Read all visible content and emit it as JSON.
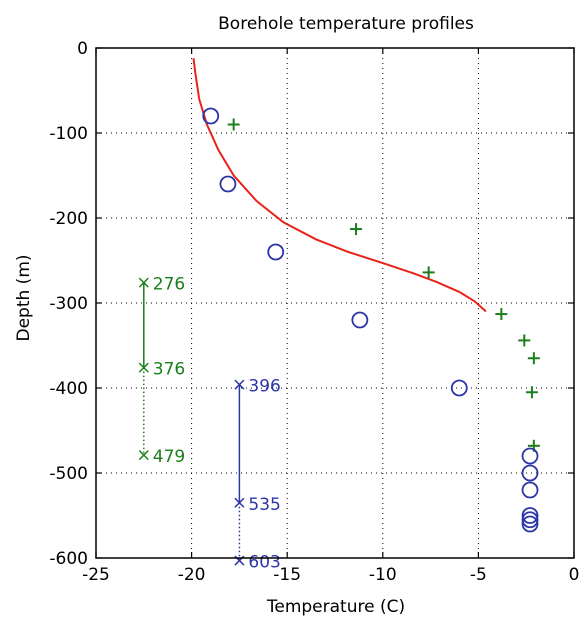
{
  "chart_data": {
    "type": "scatter",
    "title": "Borehole temperature profiles",
    "xlabel": "Temperature (C)",
    "ylabel": "Depth (m)",
    "xlim": [
      -25,
      0
    ],
    "ylim": [
      -600,
      0
    ],
    "grid": true,
    "x_ticks": [
      -25,
      -20,
      -15,
      -10,
      -5,
      0
    ],
    "x_tick_labels": [
      "-25",
      "-20",
      "-15",
      "-10",
      "-5",
      "0"
    ],
    "y_ticks": [
      0,
      -100,
      -200,
      -300,
      -400,
      -500,
      -600
    ],
    "y_tick_labels": [
      "0",
      "-100",
      "-200",
      "-300",
      "-400",
      "-500",
      "-600"
    ],
    "series": [
      {
        "kind": "line",
        "color": "#e8231b",
        "points": [
          [
            -19.9,
            -12
          ],
          [
            -19.8,
            -30
          ],
          [
            -19.6,
            -60
          ],
          [
            -19.2,
            -90
          ],
          [
            -18.6,
            -120
          ],
          [
            -17.8,
            -150
          ],
          [
            -16.6,
            -180
          ],
          [
            -15.2,
            -205
          ],
          [
            -13.5,
            -225
          ],
          [
            -11.8,
            -240
          ],
          [
            -10.0,
            -253
          ],
          [
            -8.4,
            -265
          ],
          [
            -7.2,
            -275
          ],
          [
            -6.0,
            -287
          ],
          [
            -5.2,
            -298
          ],
          [
            -4.6,
            -310
          ]
        ]
      },
      {
        "kind": "plus",
        "color": "#1a7f1a",
        "points": [
          [
            -17.8,
            -90
          ],
          [
            -11.4,
            -213
          ],
          [
            -7.6,
            -264
          ],
          [
            -3.8,
            -313
          ],
          [
            -2.6,
            -344
          ],
          [
            -2.1,
            -365
          ],
          [
            -2.2,
            -405
          ],
          [
            -2.1,
            -468
          ]
        ]
      },
      {
        "kind": "circle",
        "color": "#2b35a8",
        "points": [
          [
            -19.0,
            -80
          ],
          [
            -18.1,
            -160
          ],
          [
            -15.6,
            -240
          ],
          [
            -11.2,
            -320
          ],
          [
            -6.0,
            -400
          ],
          [
            -2.3,
            -480
          ],
          [
            -2.3,
            -500
          ],
          [
            -2.3,
            -520
          ],
          [
            -2.3,
            -550
          ],
          [
            -2.3,
            -555
          ],
          [
            -2.3,
            -560
          ]
        ]
      }
    ],
    "annotations": [
      {
        "color": "#1a7f1a",
        "x": -22.5,
        "solid": [
          -276,
          -376
        ],
        "dotted": [
          -376,
          -479
        ],
        "marks": [
          {
            "y": -276,
            "label": "276"
          },
          {
            "y": -376,
            "label": "376"
          },
          {
            "y": -479,
            "label": "479"
          }
        ]
      },
      {
        "color": "#2b35a8",
        "x": -17.5,
        "solid": [
          -396,
          -535
        ],
        "dotted": [
          -535,
          -603
        ],
        "marks": [
          {
            "y": -396,
            "label": "396"
          },
          {
            "y": -535,
            "label": "535"
          },
          {
            "y": -603,
            "label": "603"
          }
        ]
      }
    ]
  }
}
